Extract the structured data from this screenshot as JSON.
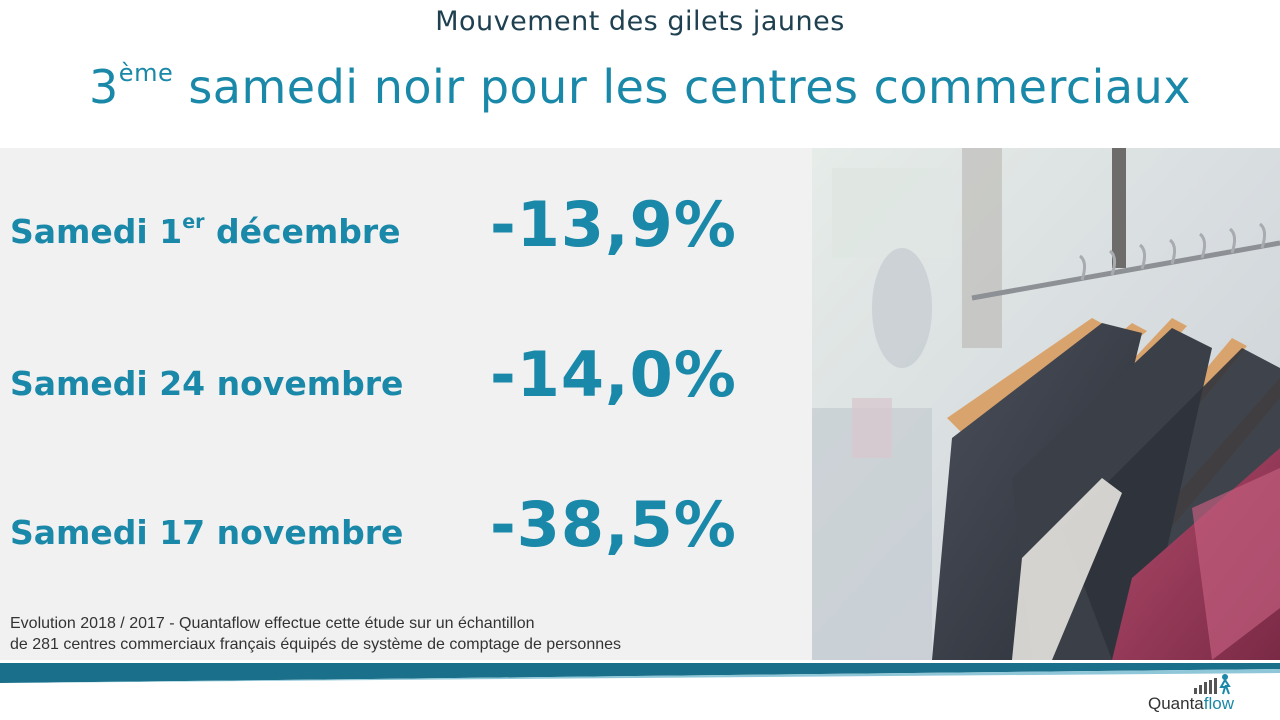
{
  "header": {
    "subtitle": "Mouvement des gilets jaunes",
    "title_number": "3",
    "title_sup": "ème",
    "title_rest": " samedi noir pour les centres commerciaux"
  },
  "rows": [
    {
      "label_pre": "Samedi 1",
      "label_sup": "er",
      "label_post": " décembre",
      "value": "-13,9%"
    },
    {
      "label_pre": "Samedi 24 novembre",
      "label_sup": "",
      "label_post": "",
      "value": "-14,0%"
    },
    {
      "label_pre": "Samedi 17 novembre",
      "label_sup": "",
      "label_post": "",
      "value": "-38,5%"
    }
  ],
  "note": {
    "line1": "Evolution 2018 / 2017  - Quantaflow effectue cette étude sur un échantillon",
    "line2": "de 281 centres commerciaux français équipés de système de comptage de personnes"
  },
  "logo": {
    "part1": "Quanta",
    "part2": "flow"
  },
  "colors": {
    "accent": "#1a88a8",
    "subtitle": "#1e4050",
    "panel": "#f1f1f1",
    "band_dark": "#1a6f8a",
    "band_light": "#8fc7d8"
  },
  "photo": {
    "icon": "clothes-rack-photo"
  }
}
